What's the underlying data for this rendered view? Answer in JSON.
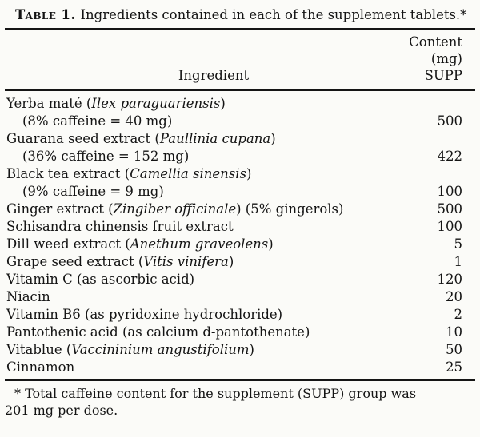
{
  "page": {
    "title_label": "Table 1.",
    "title_text": "Ingredients contained in each of the supplement tablets.*",
    "header": {
      "ingredient": "Ingredient",
      "content_lines": [
        "Content",
        "(mg)",
        "SUPP"
      ]
    },
    "rows": [
      {
        "lines": [
          {
            "indent": false,
            "segments": [
              {
                "text": "Yerba maté (",
                "italic": false
              },
              {
                "text": "Ilex paraguariensis",
                "italic": true
              },
              {
                "text": ")",
                "italic": false
              }
            ],
            "value": ""
          },
          {
            "indent": true,
            "segments": [
              {
                "text": "(8% caffeine = 40 mg)",
                "italic": false
              }
            ],
            "value": "500"
          }
        ]
      },
      {
        "lines": [
          {
            "indent": false,
            "segments": [
              {
                "text": "Guarana seed extract (",
                "italic": false
              },
              {
                "text": "Paullinia cupana",
                "italic": true
              },
              {
                "text": ")",
                "italic": false
              }
            ],
            "value": ""
          },
          {
            "indent": true,
            "segments": [
              {
                "text": "(36% caffeine = 152 mg)",
                "italic": false
              }
            ],
            "value": "422"
          }
        ]
      },
      {
        "lines": [
          {
            "indent": false,
            "segments": [
              {
                "text": "Black tea extract (",
                "italic": false
              },
              {
                "text": "Camellia sinensis",
                "italic": true
              },
              {
                "text": ")",
                "italic": false
              }
            ],
            "value": ""
          },
          {
            "indent": true,
            "segments": [
              {
                "text": "(9% caffeine = 9 mg)",
                "italic": false
              }
            ],
            "value": "100"
          }
        ]
      },
      {
        "lines": [
          {
            "indent": false,
            "segments": [
              {
                "text": "Ginger extract (",
                "italic": false
              },
              {
                "text": "Zingiber officinale",
                "italic": true
              },
              {
                "text": ") (5% gingerols)",
                "italic": false
              }
            ],
            "value": "500"
          }
        ]
      },
      {
        "lines": [
          {
            "indent": false,
            "segments": [
              {
                "text": "Schisandra chinensis fruit extract",
                "italic": false
              }
            ],
            "value": "100"
          }
        ]
      },
      {
        "lines": [
          {
            "indent": false,
            "segments": [
              {
                "text": "Dill weed extract (",
                "italic": false
              },
              {
                "text": "Anethum graveolens",
                "italic": true
              },
              {
                "text": ")",
                "italic": false
              }
            ],
            "value": "5"
          }
        ]
      },
      {
        "lines": [
          {
            "indent": false,
            "segments": [
              {
                "text": "Grape seed extract (",
                "italic": false
              },
              {
                "text": "Vitis vinifera",
                "italic": true
              },
              {
                "text": ")",
                "italic": false
              }
            ],
            "value": "1"
          }
        ]
      },
      {
        "lines": [
          {
            "indent": false,
            "segments": [
              {
                "text": "Vitamin C (as ascorbic acid)",
                "italic": false
              }
            ],
            "value": "120"
          }
        ]
      },
      {
        "lines": [
          {
            "indent": false,
            "segments": [
              {
                "text": "Niacin",
                "italic": false
              }
            ],
            "value": "20"
          }
        ]
      },
      {
        "lines": [
          {
            "indent": false,
            "segments": [
              {
                "text": "Vitamin B6 (as pyridoxine hydrochloride)",
                "italic": false
              }
            ],
            "value": "2"
          }
        ]
      },
      {
        "lines": [
          {
            "indent": false,
            "segments": [
              {
                "text": "Pantothenic acid (as calcium d-pantothenate)",
                "italic": false
              }
            ],
            "value": "10"
          }
        ]
      },
      {
        "lines": [
          {
            "indent": false,
            "segments": [
              {
                "text": "Vitablue (",
                "italic": false
              },
              {
                "text": "Vaccininium angustifolium",
                "italic": true
              },
              {
                "text": ")",
                "italic": false
              }
            ],
            "value": "50"
          }
        ]
      },
      {
        "lines": [
          {
            "indent": false,
            "segments": [
              {
                "text": "Cinnamon",
                "italic": false
              }
            ],
            "value": "25"
          }
        ]
      }
    ],
    "footnote_line1": "* Total caffeine content for the supplement (SUPP) group was",
    "footnote_line2": "201 mg per dose."
  }
}
